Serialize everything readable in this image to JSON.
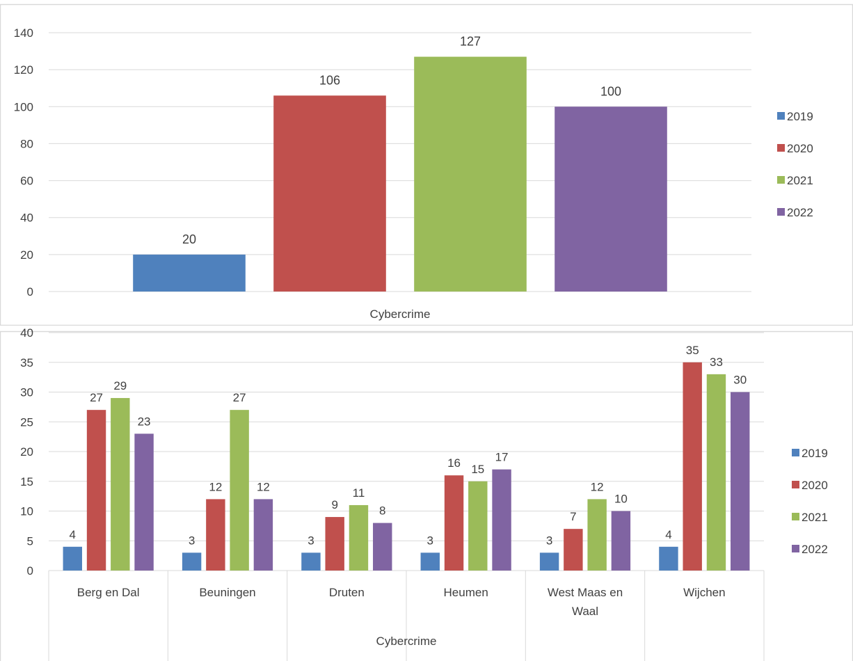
{
  "chart_data": [
    {
      "type": "bar",
      "categories": [
        "Cybercrime"
      ],
      "series": [
        {
          "name": "2019",
          "values": [
            20
          ]
        },
        {
          "name": "2020",
          "values": [
            106
          ]
        },
        {
          "name": "2021",
          "values": [
            127
          ]
        },
        {
          "name": "2022",
          "values": [
            100
          ]
        }
      ],
      "colors": [
        "#4F81BD",
        "#C0504D",
        "#9BBB59",
        "#8064A2"
      ],
      "xlabel": "",
      "ylabel": "",
      "ylim": [
        0,
        140
      ],
      "yticks": [
        0,
        20,
        40,
        60,
        80,
        100,
        120,
        140
      ],
      "grid": true,
      "legend": "right",
      "data_labels": true
    },
    {
      "type": "bar",
      "categories": [
        "Berg en Dal",
        "Beuningen",
        "Druten",
        "Heumen",
        "West Maas en Waal",
        "Wijchen"
      ],
      "series": [
        {
          "name": "2019",
          "values": [
            4,
            3,
            3,
            3,
            3,
            4
          ]
        },
        {
          "name": "2020",
          "values": [
            27,
            12,
            9,
            16,
            7,
            35
          ]
        },
        {
          "name": "2021",
          "values": [
            29,
            27,
            11,
            15,
            12,
            33
          ]
        },
        {
          "name": "2022",
          "values": [
            23,
            12,
            8,
            17,
            10,
            30
          ]
        }
      ],
      "colors": [
        "#4F81BD",
        "#C0504D",
        "#9BBB59",
        "#8064A2"
      ],
      "xlabel": "Cybercrime",
      "ylabel": "",
      "ylim": [
        0,
        40
      ],
      "yticks": [
        0,
        5,
        10,
        15,
        20,
        25,
        30,
        35,
        40
      ],
      "grid": true,
      "legend": "right",
      "data_labels": true
    }
  ]
}
